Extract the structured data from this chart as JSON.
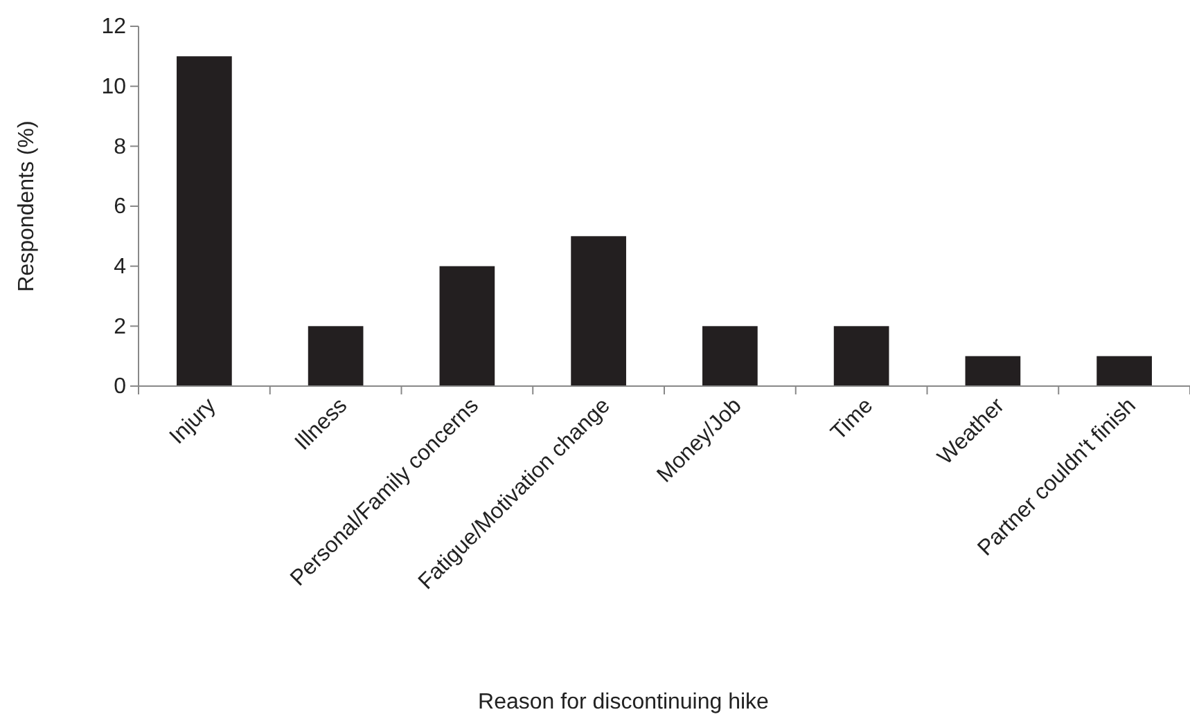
{
  "chart_data": {
    "type": "bar",
    "xlabel": "Reason for discontinuing hike",
    "ylabel": "Respondents (%)",
    "categories": [
      "Injury",
      "Illness",
      "Personal/Family concerns",
      "Fatigue/Motivation change",
      "Money/Job",
      "Time",
      "Weather",
      "Partner couldn't finish"
    ],
    "values": [
      11,
      2,
      4,
      5,
      2,
      2,
      1,
      1
    ],
    "color": "#231f20",
    "ylim": [
      0,
      12
    ],
    "yticks": [
      0,
      2,
      4,
      6,
      8,
      10,
      12
    ],
    "grid": false,
    "legend": false
  }
}
